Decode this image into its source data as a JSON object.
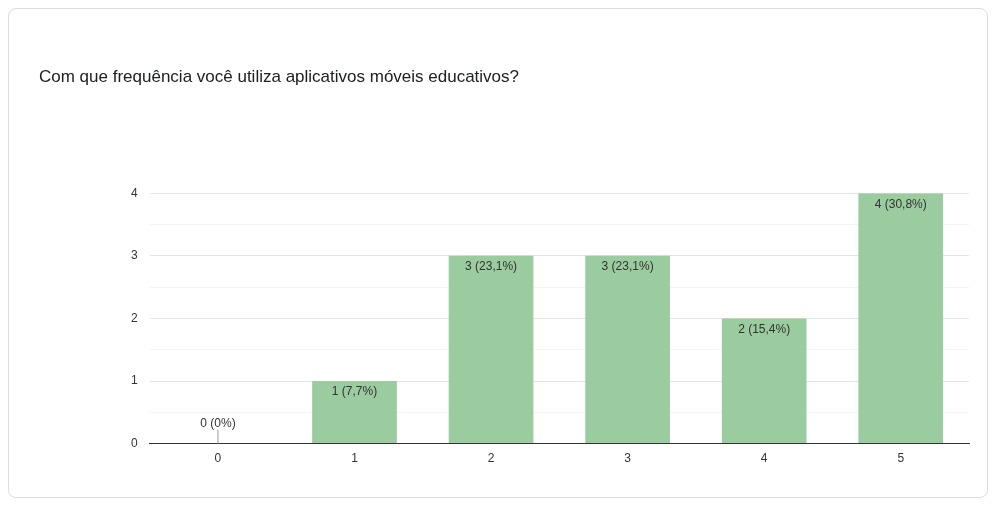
{
  "chart_data": {
    "type": "bar",
    "title": "Com que frequência você utiliza aplicativos móveis educativos?",
    "categories": [
      "0",
      "1",
      "2",
      "3",
      "4",
      "5"
    ],
    "values": [
      0,
      1,
      3,
      3,
      2,
      4
    ],
    "value_labels": [
      "0 (0%)",
      "1 (7,7%)",
      "3 (23,1%)",
      "3 (23,1%)",
      "2 (15,4%)",
      "4 (30,8%)"
    ],
    "color": "#9bcc9f",
    "ylim": [
      0,
      4
    ],
    "yticks": [
      0,
      {
        "value": 0.5,
        "label": null
      },
      1,
      {
        "value": 1.5,
        "label": null
      },
      2,
      {
        "value": 2.5,
        "label": null
      },
      3,
      {
        "value": 3.5,
        "label": null
      },
      4
    ],
    "grid": "y",
    "legend": false
  }
}
